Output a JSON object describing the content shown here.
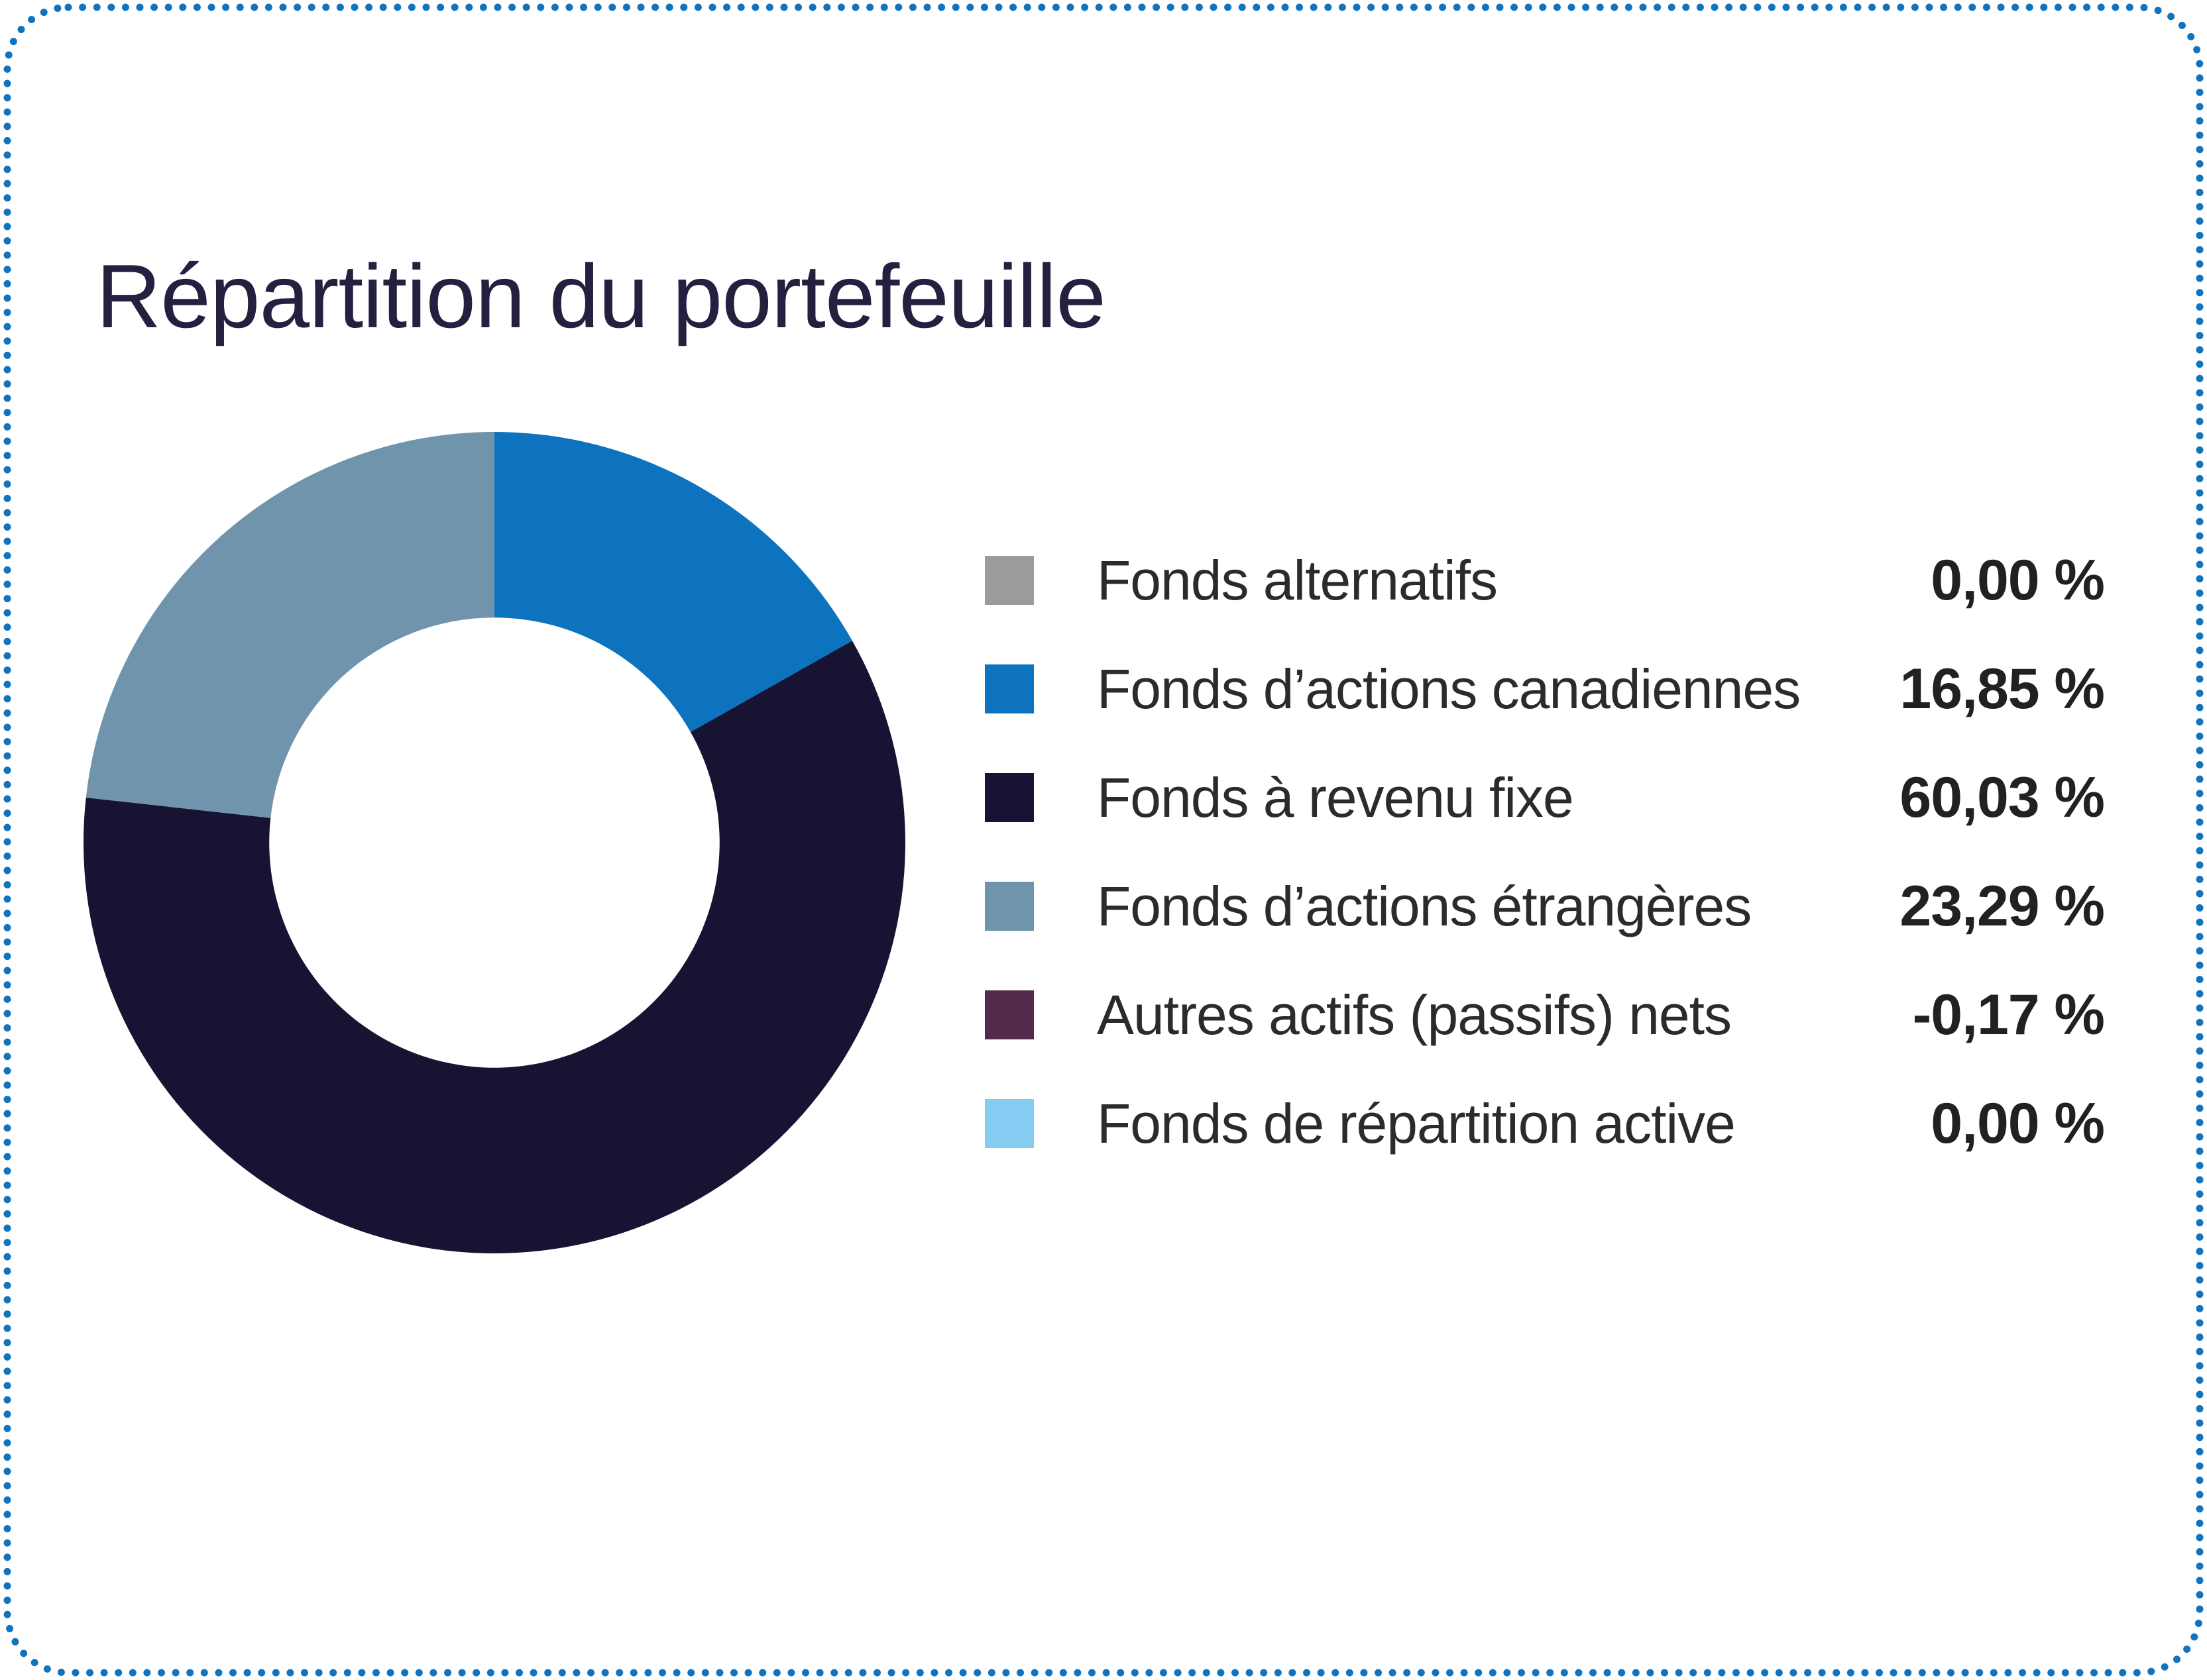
{
  "card": {
    "title": "Répartition du portefeuille",
    "border_color": "#1273BD",
    "background_color": "#ffffff"
  },
  "chart_data": {
    "type": "pie",
    "subtype": "donut",
    "title": "Répartition du portefeuille",
    "donut_hole_ratio": 0.548,
    "start_angle_deg": 0,
    "direction": "clockwise",
    "legend_position": "right",
    "series": [
      {
        "name": "Fonds alternatifs",
        "value": 0.0,
        "color": "#999B9D"
      },
      {
        "name": "Fonds d’actions canadiennes",
        "value": 16.85,
        "color": "#0D73BE"
      },
      {
        "name": "Fonds à revenu fixe",
        "value": 60.03,
        "color": "#161432"
      },
      {
        "name": "Fonds d’actions étrangères",
        "value": 23.29,
        "color": "#7094AC"
      },
      {
        "name": "Autres actifs (passifs) nets",
        "value": -0.17,
        "color": "#532A4A"
      },
      {
        "name": "Fonds de répartition active",
        "value": 0.0,
        "color": "#85CCF2"
      }
    ]
  },
  "legend": {
    "items": [
      {
        "label": "Fonds alternatifs",
        "value": "0,00 %",
        "color": "#999B9D"
      },
      {
        "label": "Fonds d’actions canadiennes",
        "value": "16,85 %",
        "color": "#0D73BE"
      },
      {
        "label": "Fonds à revenu fixe",
        "value": "60,03 %",
        "color": "#161432"
      },
      {
        "label": "Fonds d’actions étrangères",
        "value": "23,29 %",
        "color": "#7094AC"
      },
      {
        "label": "Autres actifs (passifs) nets",
        "value": "-0,17 %",
        "color": "#532A4A"
      },
      {
        "label": "Fonds de répartition active",
        "value": "0,00 %",
        "color": "#85CCF2"
      }
    ]
  }
}
